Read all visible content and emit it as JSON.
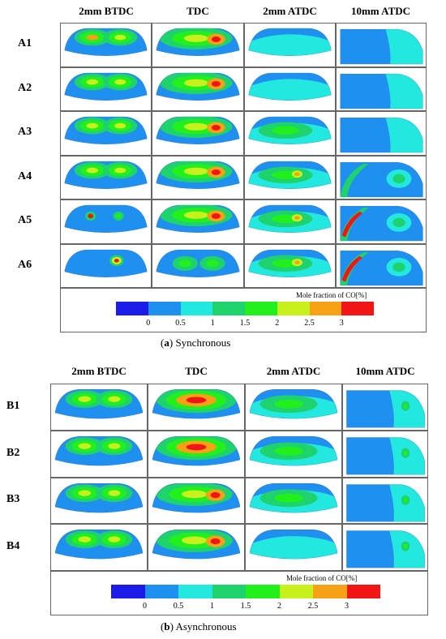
{
  "columns": [
    "2mm BTDC",
    "TDC",
    "2mm ATDC",
    "10mm ATDC"
  ],
  "panel_a": {
    "rows": [
      "A1",
      "A2",
      "A3",
      "A4",
      "A5",
      "A6"
    ],
    "caption_letter": "a",
    "caption_text": "Synchronous"
  },
  "panel_b": {
    "rows": [
      "B1",
      "B2",
      "B3",
      "B4"
    ],
    "caption_letter": "b",
    "caption_text": "Asynchronous"
  },
  "legend": {
    "title": "Mole fraction of CO[%]",
    "ticks": [
      "0",
      "0.5",
      "1",
      "1.5",
      "2",
      "2.5",
      "3"
    ],
    "colors": [
      "#1b1bea",
      "#1f8ff0",
      "#22e8e0",
      "#1ed26e",
      "#22f01c",
      "#c8f01c",
      "#f7a216",
      "#f21515"
    ]
  }
}
